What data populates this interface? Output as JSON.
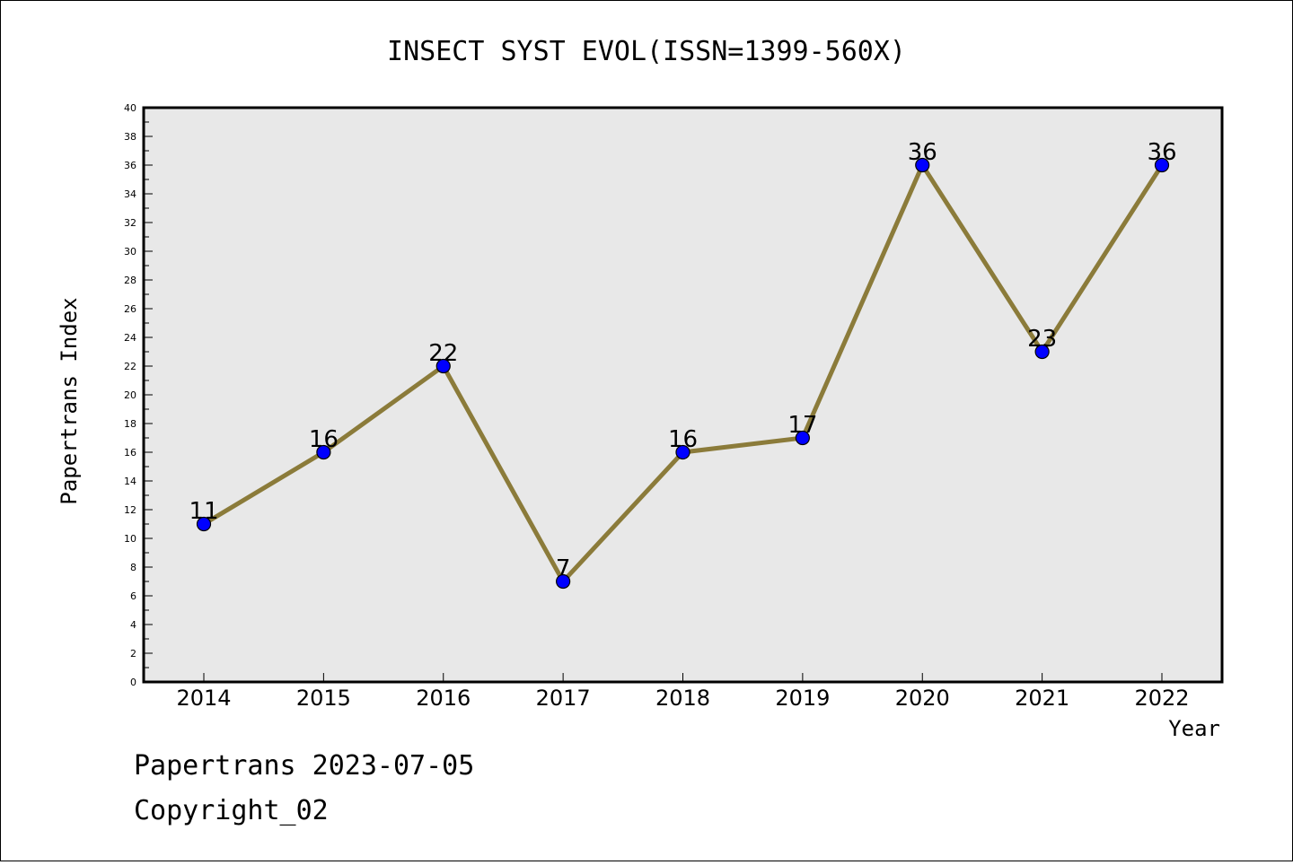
{
  "chart_data": {
    "type": "line",
    "title": "INSECT SYST EVOL(ISSN=1399-560X)",
    "xlabel": "Year",
    "ylabel": "Papertrans Index",
    "categories": [
      "2014",
      "2015",
      "2016",
      "2017",
      "2018",
      "2019",
      "2020",
      "2021",
      "2022"
    ],
    "series": [
      {
        "values": [
          11,
          16,
          22,
          7,
          16,
          17,
          36,
          23,
          36
        ]
      }
    ],
    "ylim": [
      0,
      40
    ],
    "ytick_step": 2,
    "grid": false,
    "data_labels": true,
    "colors": {
      "line": "#8B7B3A",
      "marker": "#0000FF",
      "marker_edge": "#000000",
      "plot_bg": "#E8E8E8"
    }
  },
  "footer": {
    "line1": "Papertrans 2023-07-05",
    "line2": "Copyright_02"
  }
}
